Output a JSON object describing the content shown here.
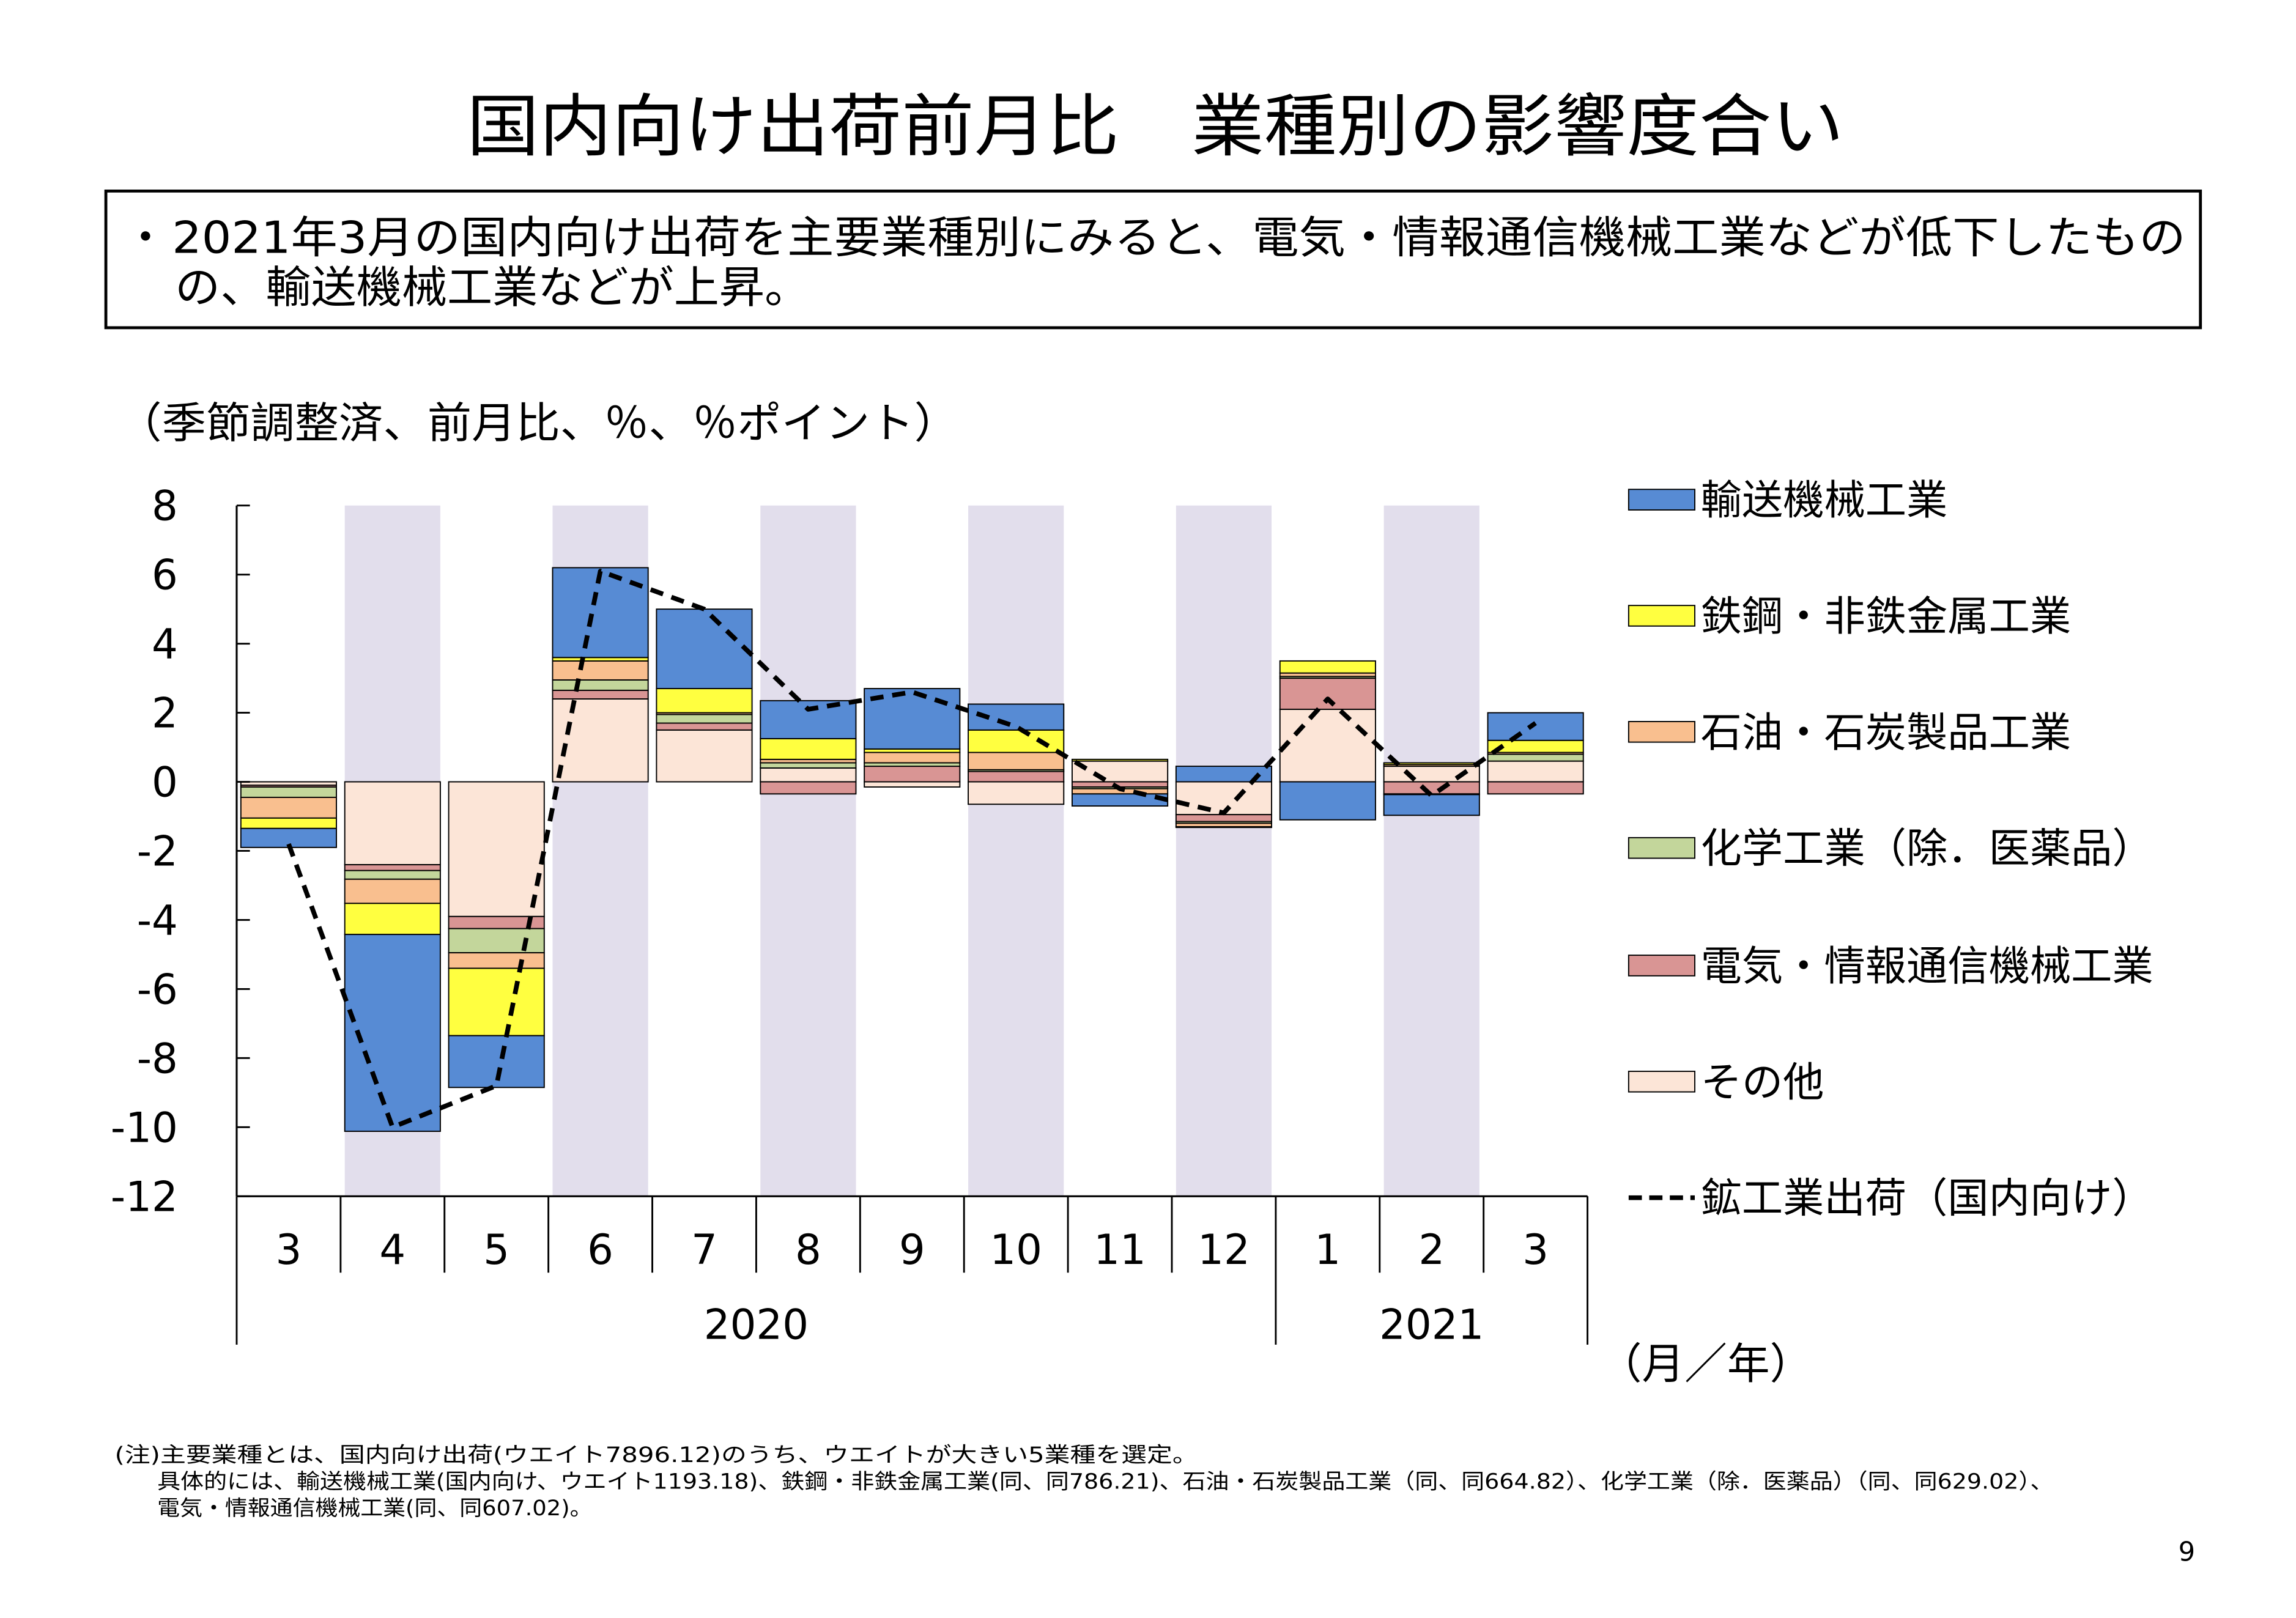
{
  "title": "国内向け出荷前月比　業種別の影響度合い",
  "summary": {
    "bullet": "・",
    "lines": [
      "2021年3月の国内向け出荷を主要業種別にみると、電気・情報通信機械工業などが低下したもの",
      "の、輸送機械工業などが上昇。"
    ]
  },
  "chart_data": {
    "type": "bar",
    "stacked": true,
    "ylabel": "（季節調整済、前月比、％、％ポイント）",
    "xlabel": "（月／年）",
    "categories": [
      "3",
      "4",
      "5",
      "6",
      "7",
      "8",
      "9",
      "10",
      "11",
      "12",
      "1",
      "2",
      "3"
    ],
    "x_groups": [
      {
        "label": "2020",
        "count": 10
      },
      {
        "label": "2021",
        "count": 3
      }
    ],
    "ylim": [
      -12,
      8
    ],
    "yticks": [
      8,
      6,
      4,
      2,
      0,
      -2,
      -4,
      -6,
      -8,
      -10,
      -12
    ],
    "grid": false,
    "legend": "right",
    "shaded_categories": [
      1,
      3,
      5,
      7,
      9,
      11
    ],
    "shade_color": "#e2deec",
    "series": [
      {
        "name": "輸送機械工業",
        "color": "#578bd4",
        "values": [
          -0.55,
          -5.7,
          -1.5,
          2.6,
          2.3,
          1.1,
          1.75,
          0.75,
          -0.35,
          0.45,
          -1.1,
          -0.6,
          0.8
        ]
      },
      {
        "name": "鉄鋼・非鉄金属工業",
        "color": "#ffff40",
        "values": [
          -0.3,
          -0.9,
          -1.95,
          0.1,
          0.7,
          0.6,
          0.1,
          0.65,
          0.05,
          -0.02,
          0.35,
          0.05,
          0.35
        ]
      },
      {
        "name": "石油・石炭製品工業",
        "color": "#f9bf8f",
        "values": [
          -0.6,
          -0.7,
          -0.45,
          0.55,
          0.05,
          0.1,
          0.3,
          0.5,
          -0.15,
          -0.1,
          0.1,
          0.05,
          0.05
        ]
      },
      {
        "name": "化学工業（除．医薬品）",
        "color": "#c3d69b",
        "values": [
          -0.3,
          -0.25,
          -0.7,
          0.3,
          0.25,
          0.15,
          0.1,
          0.05,
          -0.05,
          -0.05,
          0.05,
          -0.02,
          0.2
        ]
      },
      {
        "name": "電気・情報通信機械工業",
        "color": "#d99594",
        "values": [
          -0.05,
          -0.17,
          -0.35,
          0.25,
          0.2,
          -0.35,
          0.45,
          0.3,
          -0.15,
          -0.2,
          0.9,
          -0.35,
          -0.35
        ]
      },
      {
        "name": "その他",
        "color": "#fce5d7",
        "values": [
          -0.1,
          -2.4,
          -3.9,
          2.4,
          1.5,
          0.4,
          -0.15,
          -0.65,
          0.6,
          -0.95,
          2.1,
          0.45,
          0.6
        ]
      }
    ],
    "line": {
      "name": "鉱工業出荷（国内向け）",
      "color": "#000000",
      "values": [
        -1.8,
        -10.0,
        -8.8,
        6.1,
        5.0,
        2.1,
        2.6,
        1.6,
        -0.2,
        -0.9,
        2.4,
        -0.4,
        1.7
      ]
    }
  },
  "notes": [
    "(注)主要業種とは、国内向け出荷(ウエイト7896.12)のうち、ウエイトが大きい5業種を選定。",
    "具体的には、輸送機械工業(国内向け、ウエイト1193.18)、鉄鋼・非鉄金属工業(同、同786.21)、石油・石炭製品工業（同、同664.82）、化学工業（除．医薬品）（同、同629.02）、",
    "電気・情報通信機械工業(同、同607.02)。"
  ],
  "page_number": "9"
}
